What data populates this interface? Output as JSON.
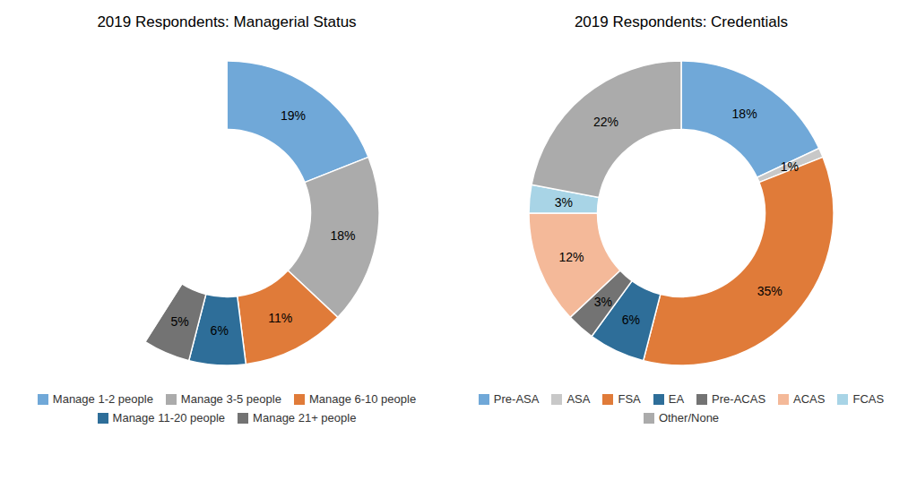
{
  "chart_data": [
    {
      "type": "donut",
      "title": "2019 Respondents: Managerial Status",
      "categories": [
        "Manage 1-2 people",
        "Manage 3-5 people",
        "Manage 6-10 people",
        "Manage 11-20 people",
        "Manage 21+ people",
        null
      ],
      "values": [
        19,
        18,
        11,
        6,
        5,
        41
      ],
      "value_labels": [
        "19%",
        "18%",
        "11%",
        "6%",
        "5%",
        null
      ],
      "colors": [
        "#70A8D8",
        "#ABABAB",
        "#E07B39",
        "#2E6E99",
        "#737373",
        "#FFFFFF"
      ],
      "data_labels": true,
      "legend": "bottom"
    },
    {
      "type": "donut",
      "title": "2019 Respondents: Credentials",
      "categories": [
        "Pre-ASA",
        "ASA",
        "FSA",
        "EA",
        "Pre-ACAS",
        "ACAS",
        "FCAS",
        "Other/None"
      ],
      "values": [
        18,
        1,
        35,
        6,
        3,
        12,
        3,
        22
      ],
      "value_labels": [
        "18%",
        "1%",
        "35%",
        "6%",
        "3%",
        "12%",
        "3%",
        "22%"
      ],
      "colors": [
        "#70A8D8",
        "#C8C8C8",
        "#E07B39",
        "#2E6E99",
        "#737373",
        "#F4B999",
        "#A8D4E6",
        "#ABABAB"
      ],
      "data_labels": true,
      "legend": "bottom"
    }
  ]
}
